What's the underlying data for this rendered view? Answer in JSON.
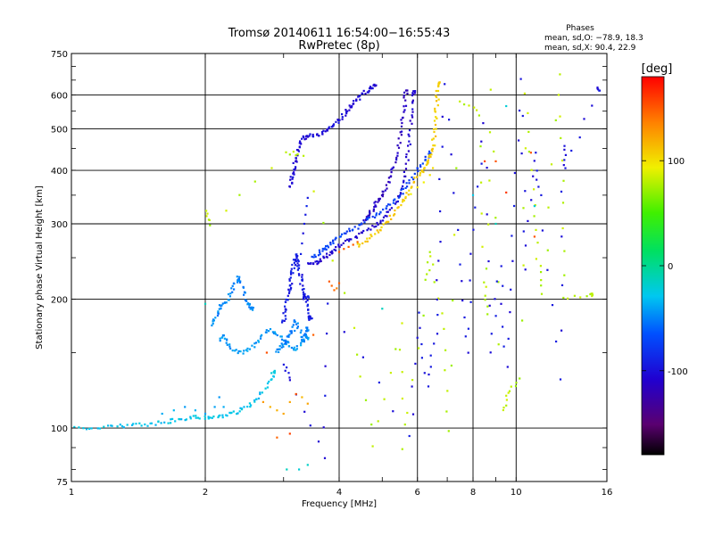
{
  "chart_data": {
    "type": "scatter",
    "title": "Tromsø 20140611 16:54:00−16:55:43",
    "subtitle": "RwPretec (8p)",
    "xlabel": "Frequency [MHz]",
    "ylabel": "Stationary phase Virtual Height [km]",
    "x_scale": "log",
    "y_scale": "log",
    "xlim": [
      1,
      16
    ],
    "ylim": [
      75,
      750
    ],
    "x_ticks": [
      1,
      2,
      4,
      6,
      8,
      10,
      16
    ],
    "y_ticks": [
      75,
      100,
      200,
      300,
      400,
      500,
      600,
      750
    ],
    "grid": true,
    "stats": {
      "header": "Phases",
      "line_o": "mean, sd,O: −78.9, 18.3",
      "line_x": "mean, sd,X:  90.4, 22.9"
    },
    "colorbar": {
      "label": "[deg]",
      "range": [
        -180,
        180
      ],
      "ticks": [
        -100,
        0,
        100
      ],
      "colormap": "rainbow (black-purple-blue-cyan-green-yellow-red)"
    },
    "traces": [
      {
        "phase": -30,
        "points": [
          [
            1.0,
            100
          ],
          [
            1.1,
            100
          ],
          [
            1.2,
            101
          ],
          [
            1.3,
            101
          ],
          [
            1.4,
            102
          ],
          [
            1.5,
            102
          ],
          [
            1.6,
            103
          ],
          [
            1.7,
            104
          ],
          [
            1.8,
            105
          ],
          [
            1.9,
            106
          ],
          [
            2.0,
            106
          ],
          [
            2.1,
            106
          ],
          [
            2.2,
            107
          ],
          [
            2.3,
            108
          ],
          [
            2.4,
            110
          ],
          [
            2.5,
            112
          ],
          [
            2.6,
            116
          ],
          [
            2.7,
            122
          ],
          [
            2.8,
            130
          ],
          [
            2.85,
            135
          ]
        ]
      },
      {
        "phase": -40,
        "points": [
          [
            1.6,
            108
          ],
          [
            1.7,
            110
          ],
          [
            1.8,
            112
          ],
          [
            1.9,
            110
          ],
          [
            2.0,
            108
          ],
          [
            2.1,
            112
          ],
          [
            2.15,
            118
          ],
          [
            2.2,
            112
          ]
        ]
      },
      {
        "phase": -50,
        "points": [
          [
            2.08,
            175
          ],
          [
            2.12,
            180
          ],
          [
            2.15,
            190
          ],
          [
            2.2,
            195
          ],
          [
            2.25,
            200
          ],
          [
            2.3,
            210
          ],
          [
            2.35,
            220
          ],
          [
            2.38,
            225
          ],
          [
            2.42,
            215
          ],
          [
            2.45,
            200
          ],
          [
            2.5,
            195
          ],
          [
            2.55,
            190
          ]
        ]
      },
      {
        "phase": -45,
        "points": [
          [
            2.15,
            160
          ],
          [
            2.2,
            165
          ],
          [
            2.25,
            158
          ],
          [
            2.3,
            152
          ],
          [
            2.4,
            150
          ],
          [
            2.5,
            152
          ],
          [
            2.6,
            158
          ],
          [
            2.7,
            165
          ],
          [
            2.8,
            170
          ],
          [
            2.9,
            165
          ],
          [
            3.0,
            160
          ],
          [
            3.1,
            155
          ],
          [
            3.2,
            152
          ],
          [
            3.3,
            158
          ],
          [
            3.4,
            163
          ]
        ]
      },
      {
        "phase": -50,
        "points": [
          [
            2.9,
            150
          ],
          [
            2.95,
            155
          ],
          [
            3.0,
            158
          ],
          [
            3.05,
            160
          ],
          [
            3.1,
            165
          ],
          [
            3.15,
            170
          ],
          [
            3.2,
            180
          ],
          [
            3.25,
            170
          ],
          [
            3.3,
            160
          ],
          [
            3.35,
            165
          ],
          [
            3.4,
            170
          ]
        ]
      },
      {
        "phase": -95,
        "points": [
          [
            3.0,
            175
          ],
          [
            3.02,
            185
          ],
          [
            3.05,
            195
          ],
          [
            3.08,
            205
          ],
          [
            3.1,
            215
          ],
          [
            3.12,
            225
          ],
          [
            3.15,
            235
          ],
          [
            3.18,
            245
          ],
          [
            3.2,
            255
          ],
          [
            3.22,
            245
          ],
          [
            3.25,
            235
          ],
          [
            3.28,
            225
          ],
          [
            3.3,
            215
          ],
          [
            3.32,
            205
          ],
          [
            3.35,
            200
          ],
          [
            3.38,
            205
          ],
          [
            3.4,
            195
          ],
          [
            3.42,
            185
          ],
          [
            3.45,
            180
          ]
        ]
      },
      {
        "phase": -95,
        "points": [
          [
            3.25,
            240
          ],
          [
            3.28,
            255
          ],
          [
            3.3,
            270
          ],
          [
            3.32,
            285
          ],
          [
            3.34,
            300
          ],
          [
            3.36,
            315
          ],
          [
            3.38,
            330
          ],
          [
            3.4,
            345
          ]
        ]
      },
      {
        "phase": -105,
        "points": [
          [
            3.1,
            365
          ],
          [
            3.12,
            380
          ],
          [
            3.15,
            395
          ],
          [
            3.18,
            410
          ],
          [
            3.2,
            425
          ],
          [
            3.22,
            440
          ],
          [
            3.25,
            460
          ],
          [
            3.3,
            475
          ],
          [
            3.4,
            480
          ],
          [
            3.5,
            482
          ],
          [
            3.6,
            485
          ],
          [
            3.7,
            490
          ],
          [
            3.8,
            500
          ],
          [
            3.9,
            512
          ],
          [
            4.0,
            525
          ],
          [
            4.1,
            540
          ],
          [
            4.2,
            555
          ],
          [
            4.3,
            570
          ],
          [
            4.4,
            585
          ],
          [
            4.5,
            600
          ],
          [
            4.6,
            612
          ],
          [
            4.7,
            620
          ],
          [
            4.8,
            630
          ]
        ]
      },
      {
        "phase": -110,
        "points": [
          [
            3.4,
            240
          ],
          [
            3.5,
            242
          ],
          [
            3.6,
            245
          ],
          [
            3.7,
            250
          ],
          [
            3.8,
            255
          ],
          [
            3.9,
            260
          ],
          [
            4.0,
            268
          ],
          [
            4.2,
            275
          ],
          [
            4.4,
            282
          ],
          [
            4.6,
            290
          ],
          [
            4.8,
            298
          ],
          [
            5.0,
            305
          ],
          [
            5.2,
            320
          ],
          [
            5.4,
            340
          ],
          [
            5.5,
            360
          ],
          [
            5.6,
            390
          ],
          [
            5.7,
            430
          ],
          [
            5.75,
            470
          ],
          [
            5.8,
            520
          ],
          [
            5.85,
            570
          ],
          [
            5.9,
            610
          ]
        ]
      },
      {
        "phase": -115,
        "points": [
          [
            4.5,
            300
          ],
          [
            4.6,
            310
          ],
          [
            4.7,
            320
          ],
          [
            4.8,
            330
          ],
          [
            4.9,
            340
          ],
          [
            5.0,
            350
          ],
          [
            5.1,
            365
          ],
          [
            5.2,
            385
          ],
          [
            5.3,
            410
          ],
          [
            5.4,
            440
          ],
          [
            5.5,
            480
          ],
          [
            5.55,
            520
          ],
          [
            5.6,
            560
          ],
          [
            5.65,
            610
          ]
        ]
      },
      {
        "phase": -75,
        "points": [
          [
            3.5,
            250
          ],
          [
            3.6,
            255
          ],
          [
            3.7,
            262
          ],
          [
            3.8,
            268
          ],
          [
            3.9,
            275
          ],
          [
            4.0,
            280
          ],
          [
            4.2,
            288
          ],
          [
            4.4,
            295
          ],
          [
            4.6,
            305
          ],
          [
            4.8,
            312
          ],
          [
            5.0,
            320
          ],
          [
            5.2,
            330
          ],
          [
            5.4,
            345
          ],
          [
            5.6,
            360
          ],
          [
            5.8,
            380
          ],
          [
            6.0,
            400
          ],
          [
            6.2,
            420
          ],
          [
            6.4,
            440
          ]
        ]
      },
      {
        "phase": 150,
        "points": [
          [
            4.0,
            258
          ],
          [
            4.1,
            262
          ],
          [
            4.2,
            265
          ],
          [
            4.3,
            268
          ],
          [
            4.4,
            272
          ]
        ]
      },
      {
        "phase": 145,
        "points": [
          [
            3.8,
            220
          ],
          [
            3.85,
            215
          ],
          [
            3.9,
            210
          ],
          [
            3.95,
            212
          ],
          [
            4.0,
            218
          ]
        ]
      },
      {
        "phase": 110,
        "points": [
          [
            4.4,
            268
          ],
          [
            4.6,
            275
          ],
          [
            4.8,
            285
          ],
          [
            5.0,
            295
          ],
          [
            5.2,
            308
          ],
          [
            5.4,
            325
          ],
          [
            5.6,
            345
          ],
          [
            5.8,
            365
          ],
          [
            6.0,
            385
          ],
          [
            6.2,
            400
          ],
          [
            6.3,
            415
          ],
          [
            6.4,
            430
          ],
          [
            6.5,
            450
          ],
          [
            6.55,
            480
          ],
          [
            6.6,
            520
          ],
          [
            6.62,
            560
          ],
          [
            6.65,
            600
          ],
          [
            6.68,
            640
          ]
        ]
      },
      {
        "phase": 100,
        "points": [
          [
            5.6,
            340
          ],
          [
            5.8,
            352
          ],
          [
            6.0,
            365
          ],
          [
            6.2,
            375
          ],
          [
            6.4,
            390
          ],
          [
            6.5,
            405
          ]
        ]
      },
      {
        "phase": 125,
        "points": [
          [
            2.7,
            115
          ],
          [
            2.8,
            112
          ],
          [
            2.9,
            110
          ],
          [
            3.0,
            108
          ],
          [
            3.1,
            115
          ],
          [
            3.2,
            120
          ],
          [
            3.3,
            118
          ],
          [
            3.4,
            114
          ]
        ]
      },
      {
        "phase": 80,
        "points": [
          [
            2.0,
            320
          ],
          [
            2.05,
            300
          ],
          [
            3.05,
            440
          ],
          [
            3.3,
            435
          ],
          [
            4.3,
            170
          ],
          [
            4.8,
            90
          ],
          [
            5.5,
            175
          ],
          [
            5.6,
            90
          ],
          [
            6.3,
            220
          ],
          [
            6.4,
            260
          ],
          [
            6.9,
            170
          ],
          [
            7.0,
            98
          ],
          [
            7.5,
            580
          ],
          [
            8.3,
            540
          ],
          [
            8.5,
            220
          ],
          [
            8.6,
            185
          ],
          [
            8.8,
            620
          ],
          [
            9.3,
            110
          ],
          [
            9.6,
            120
          ],
          [
            10.2,
            130
          ],
          [
            10.5,
            610
          ],
          [
            11.0,
            360
          ],
          [
            11.2,
            250
          ],
          [
            11.5,
            205
          ],
          [
            12.5,
            665
          ],
          [
            12.7,
            380
          ],
          [
            12.8,
            200
          ],
          [
            14.8,
            205
          ]
        ]
      },
      {
        "phase": -100,
        "points": [
          [
            3.0,
            140
          ],
          [
            3.1,
            130
          ],
          [
            3.7,
            85
          ],
          [
            3.8,
            195
          ],
          [
            5.8,
            95
          ],
          [
            6.0,
            185
          ],
          [
            6.3,
            125
          ],
          [
            6.6,
            165
          ],
          [
            6.7,
            270
          ],
          [
            6.9,
            640
          ],
          [
            7.5,
            240
          ],
          [
            7.8,
            150
          ],
          [
            8.0,
            290
          ],
          [
            8.5,
            520
          ],
          [
            8.8,
            150
          ],
          [
            9.2,
            240
          ],
          [
            9.5,
            140
          ],
          [
            9.8,
            280
          ],
          [
            10.2,
            660
          ],
          [
            10.5,
            235
          ],
          [
            11.0,
            440
          ],
          [
            11.3,
            350
          ],
          [
            12.5,
            130
          ],
          [
            12.8,
            460
          ],
          [
            12.9,
            405
          ],
          [
            15.3,
            620
          ]
        ]
      },
      {
        "phase": 155,
        "points": [
          [
            2.75,
            150
          ],
          [
            2.9,
            95
          ],
          [
            3.1,
            97
          ],
          [
            3.2,
            120
          ],
          [
            3.5,
            165
          ],
          [
            8.5,
            420
          ],
          [
            9.0,
            420
          ],
          [
            9.5,
            355
          ],
          [
            10.8,
            440
          ],
          [
            11.0,
            280
          ]
        ]
      },
      {
        "phase": -20,
        "points": [
          [
            1.25,
            72
          ],
          [
            2.0,
            195
          ],
          [
            3.05,
            80
          ],
          [
            3.25,
            80
          ],
          [
            3.4,
            82
          ],
          [
            5.0,
            190
          ],
          [
            8.0,
            350
          ],
          [
            9.0,
            300
          ],
          [
            9.5,
            565
          ],
          [
            11.0,
            330
          ]
        ]
      }
    ]
  }
}
